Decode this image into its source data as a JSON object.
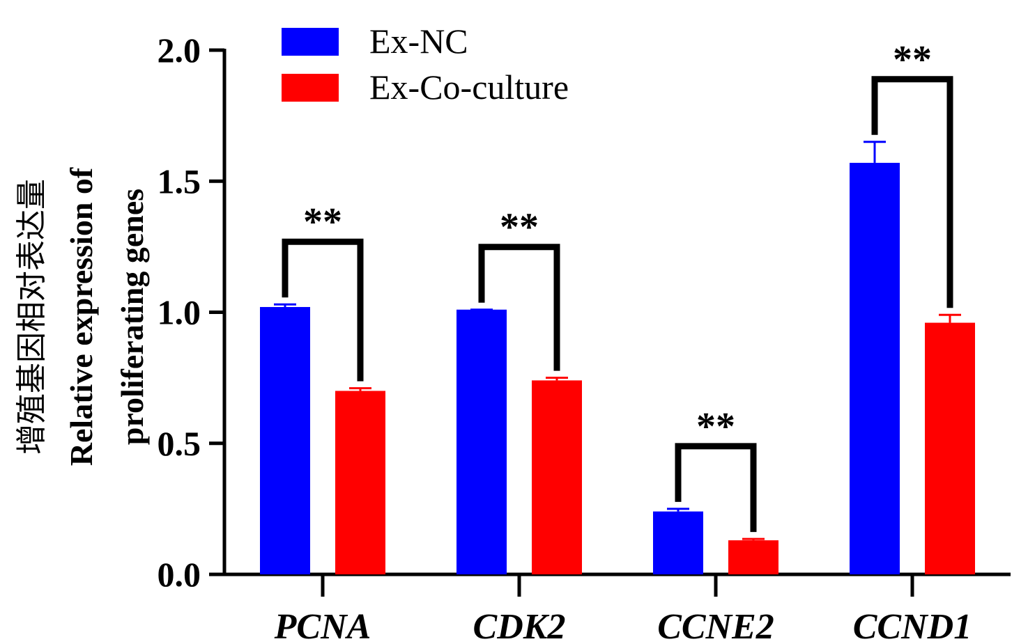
{
  "chart_data": {
    "type": "bar",
    "categories": [
      "PCNA",
      "CDK2",
      "CCNE2",
      "CCND1"
    ],
    "series": [
      {
        "name": "Ex-NC",
        "color": "#0000ff",
        "values": [
          1.02,
          1.01,
          0.24,
          1.57
        ],
        "errors": [
          0.01,
          0.0,
          0.01,
          0.08
        ]
      },
      {
        "name": "Ex-Co-culture",
        "color": "#ff0000",
        "values": [
          0.7,
          0.74,
          0.13,
          0.96
        ],
        "errors": [
          0.01,
          0.01,
          0.005,
          0.03
        ]
      }
    ],
    "ylabel_zh": "增殖基因相对表达量",
    "ylabel_line1": "Relative expression of",
    "ylabel_line2": "proliferating genes",
    "ylim": [
      0,
      2.0
    ],
    "yticks": [
      "0.0",
      "0.5",
      "1.0",
      "1.5",
      "2.0"
    ],
    "significance": [
      "**",
      "**",
      "**",
      "**"
    ],
    "legend_position": "top-left"
  }
}
